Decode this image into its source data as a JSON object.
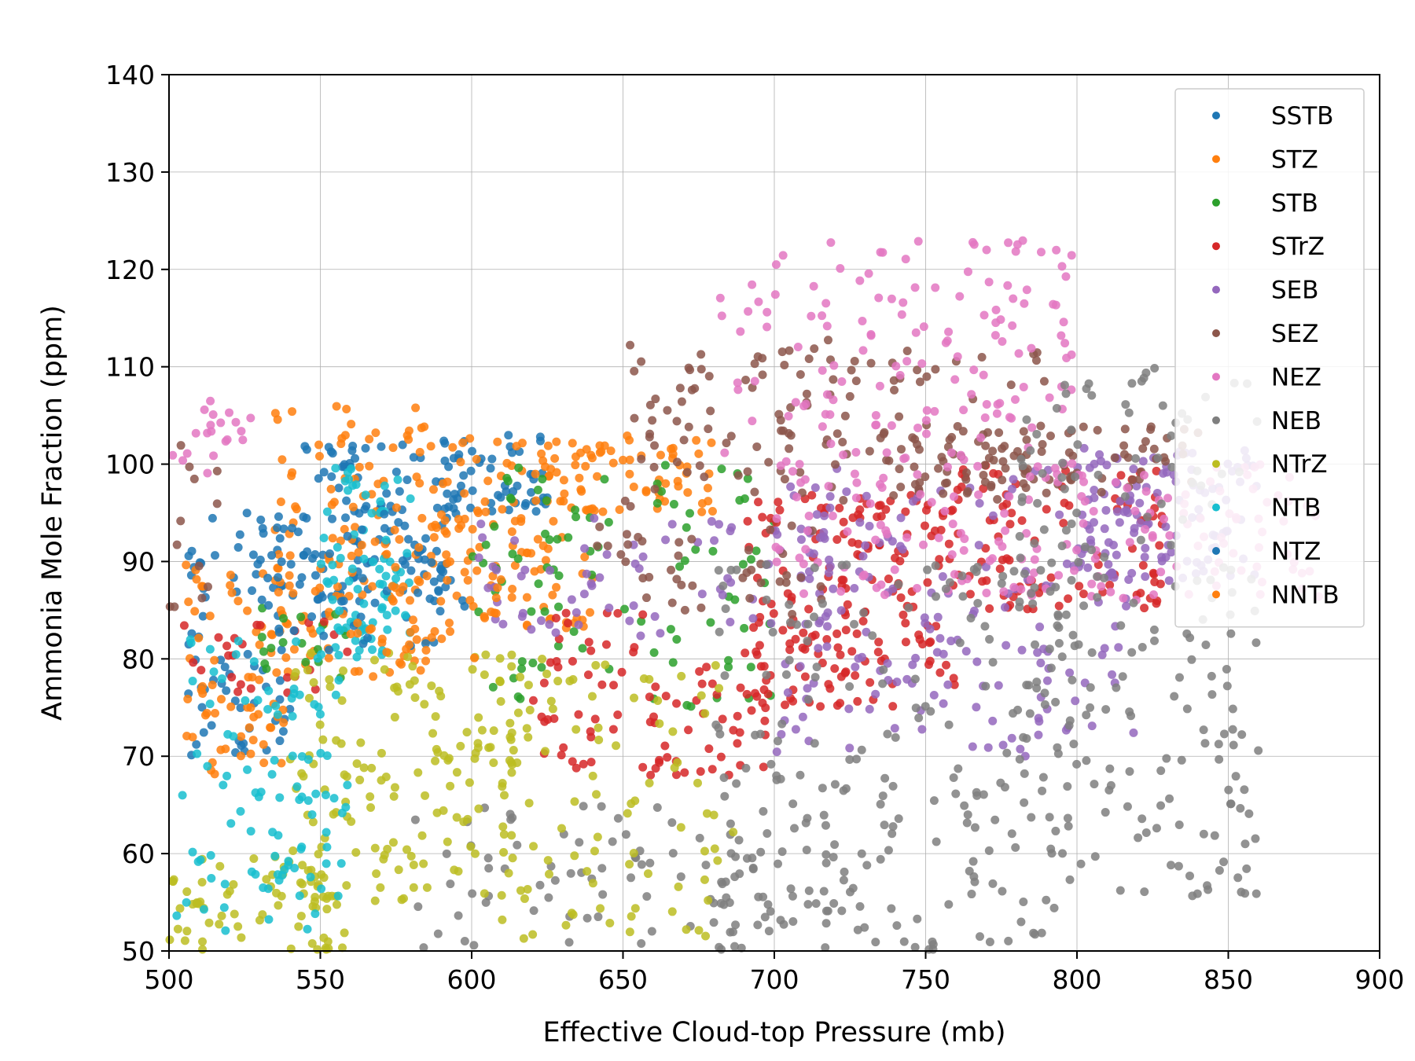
{
  "chart_data": {
    "type": "scatter",
    "title": "",
    "xlabel": "Effective Cloud-top Pressure (mb)",
    "ylabel": "Ammonia Mole Fraction (ppm)",
    "xlim": [
      500,
      900
    ],
    "ylim": [
      50,
      140
    ],
    "xticks": [
      500,
      550,
      600,
      650,
      700,
      750,
      800,
      850,
      900
    ],
    "yticks": [
      50,
      60,
      70,
      80,
      90,
      100,
      110,
      120,
      130,
      140
    ],
    "grid": true,
    "legend": "top-right",
    "series": [
      {
        "name": "SSTB",
        "color": "#1f77b4",
        "clusters": [
          {
            "x": [
              505,
              540
            ],
            "y": [
              70,
              95
            ],
            "n": 70
          },
          {
            "x": [
              540,
              600
            ],
            "y": [
              84,
              102
            ],
            "n": 110
          },
          {
            "x": [
              590,
              625
            ],
            "y": [
              95,
              103
            ],
            "n": 50
          }
        ]
      },
      {
        "name": "STZ",
        "color": "#ff7f0e",
        "clusters": [
          {
            "x": [
              505,
              540
            ],
            "y": [
              68,
              90
            ],
            "n": 70
          },
          {
            "x": [
              535,
              585
            ],
            "y": [
              78,
              106
            ],
            "n": 120
          },
          {
            "x": [
              585,
              640
            ],
            "y": [
              83,
              103
            ],
            "n": 110
          },
          {
            "x": [
              625,
              680
            ],
            "y": [
              95,
              103
            ],
            "n": 60
          }
        ]
      },
      {
        "name": "STB",
        "color": "#2ca02c",
        "clusters": [
          {
            "x": [
              530,
              560
            ],
            "y": [
              78,
              86
            ],
            "n": 18
          },
          {
            "x": [
              600,
              700
            ],
            "y": [
              75,
              100
            ],
            "n": 90
          }
        ]
      },
      {
        "name": "STrZ",
        "color": "#d62728",
        "clusters": [
          {
            "x": [
              505,
              560
            ],
            "y": [
              76,
              84
            ],
            "n": 25
          },
          {
            "x": [
              620,
              700
            ],
            "y": [
              68,
              85
            ],
            "n": 90
          },
          {
            "x": [
              690,
              760
            ],
            "y": [
              75,
              97
            ],
            "n": 170
          },
          {
            "x": [
              760,
              830
            ],
            "y": [
              85,
              100
            ],
            "n": 90
          }
        ]
      },
      {
        "name": "SEB",
        "color": "#9467bd",
        "clusters": [
          {
            "x": [
              600,
              720
            ],
            "y": [
              82,
              95
            ],
            "n": 80
          },
          {
            "x": [
              700,
              820
            ],
            "y": [
              70,
              100
            ],
            "n": 160
          },
          {
            "x": [
              800,
              860
            ],
            "y": [
              88,
              102
            ],
            "n": 110
          }
        ]
      },
      {
        "name": "SEZ",
        "color": "#8c564b",
        "clusters": [
          {
            "x": [
              500,
              520
            ],
            "y": [
              85,
              102
            ],
            "n": 12
          },
          {
            "x": [
              650,
              720
            ],
            "y": [
              95,
              113
            ],
            "n": 60
          },
          {
            "x": [
              700,
              790
            ],
            "y": [
              96,
              112
            ],
            "n": 70
          },
          {
            "x": [
              740,
              840
            ],
            "y": [
              97,
              104
            ],
            "n": 90
          },
          {
            "x": [
              640,
              720
            ],
            "y": [
              84,
              94
            ],
            "n": 40
          }
        ]
      },
      {
        "name": "NEZ",
        "color": "#e377c2",
        "clusters": [
          {
            "x": [
              500,
              530
            ],
            "y": [
              99,
              107
            ],
            "n": 20
          },
          {
            "x": [
              680,
              800
            ],
            "y": [
              100,
              123
            ],
            "n": 140
          },
          {
            "x": [
              700,
              880
            ],
            "y": [
              86,
              100
            ],
            "n": 170
          }
        ]
      },
      {
        "name": "NEB",
        "color": "#7f7f7f",
        "clusters": [
          {
            "x": [
              580,
              720
            ],
            "y": [
              50,
              65
            ],
            "n": 90
          },
          {
            "x": [
              680,
              800
            ],
            "y": [
              50,
              90
            ],
            "n": 220
          },
          {
            "x": [
              780,
              860
            ],
            "y": [
              55,
              110
            ],
            "n": 190
          }
        ]
      },
      {
        "name": "NTrZ",
        "color": "#bcbd22",
        "clusters": [
          {
            "x": [
              500,
              560
            ],
            "y": [
              50,
              60
            ],
            "n": 70
          },
          {
            "x": [
              540,
              620
            ],
            "y": [
              55,
              81
            ],
            "n": 150
          },
          {
            "x": [
              600,
              690
            ],
            "y": [
              51,
              80
            ],
            "n": 90
          }
        ]
      },
      {
        "name": "NTB",
        "color": "#17becf",
        "clusters": [
          {
            "x": [
              500,
              560
            ],
            "y": [
              52,
              82
            ],
            "n": 100
          },
          {
            "x": [
              550,
              580
            ],
            "y": [
              80,
              100
            ],
            "n": 80
          }
        ]
      },
      {
        "name": "NTZ",
        "color": "#1f77b4",
        "clusters": [
          {
            "x": [
              530,
              600
            ],
            "y": [
              80,
              95
            ],
            "n": 50
          }
        ]
      },
      {
        "name": "NNTB",
        "color": "#ff7f0e",
        "clusters": [
          {
            "x": [
              560,
              610
            ],
            "y": [
              80,
              92
            ],
            "n": 40
          }
        ]
      }
    ]
  }
}
